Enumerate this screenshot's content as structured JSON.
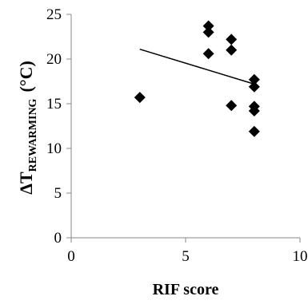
{
  "chart_data": {
    "type": "scatter",
    "xlabel": "RIF score",
    "ylabel": {
      "prefix": "ΔT",
      "subscript": "REWARMING",
      "unit": "(°C)"
    },
    "xlim": [
      0,
      10
    ],
    "ylim": [
      0,
      25
    ],
    "xticks": [
      0,
      5,
      10
    ],
    "yticks": [
      0,
      5,
      10,
      15,
      20,
      25
    ],
    "grid": false,
    "marker": "diamond",
    "marker_color": "#000000",
    "points": [
      {
        "x": 3,
        "y": 15.7
      },
      {
        "x": 6,
        "y": 23.7
      },
      {
        "x": 6,
        "y": 23.0
      },
      {
        "x": 6,
        "y": 20.6
      },
      {
        "x": 7,
        "y": 22.2
      },
      {
        "x": 7,
        "y": 21.0
      },
      {
        "x": 7,
        "y": 14.8
      },
      {
        "x": 8,
        "y": 17.7
      },
      {
        "x": 8,
        "y": 16.9
      },
      {
        "x": 8,
        "y": 14.7
      },
      {
        "x": 8,
        "y": 14.2
      },
      {
        "x": 8,
        "y": 11.9
      }
    ],
    "trendline": {
      "type": "linear",
      "from": {
        "x": 3,
        "y": 21.1
      },
      "to": {
        "x": 8,
        "y": 17.2
      }
    }
  }
}
